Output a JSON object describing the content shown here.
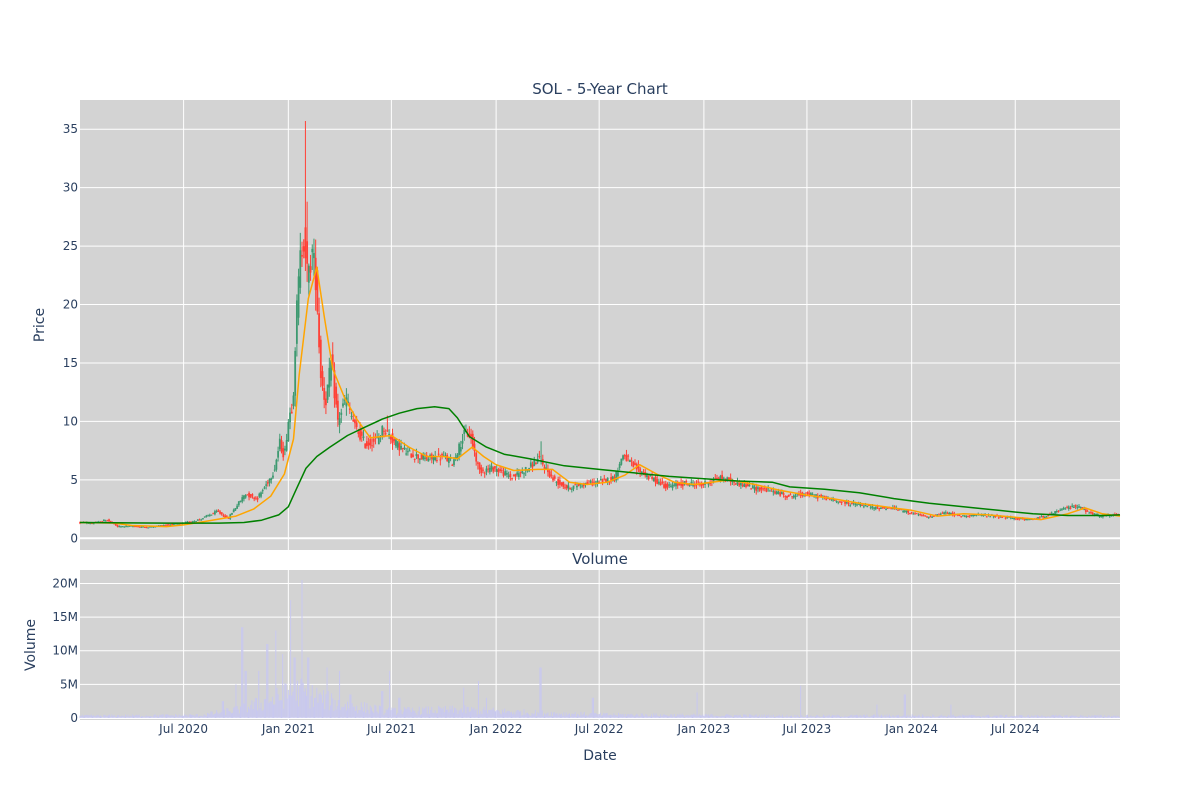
{
  "chart_data": [
    {
      "type": "candlestick",
      "title": "SOL - 5-Year Chart",
      "xlabel": "",
      "ylabel": "Price",
      "ylim": [
        -1,
        37.5
      ],
      "yticks": [
        0,
        5,
        10,
        15,
        20,
        25,
        30,
        35
      ],
      "xlim": [
        "2020-01-01",
        "2025-01-01"
      ],
      "xticks": [
        {
          "date": "2020-07-01",
          "label": "Jul 2020"
        },
        {
          "date": "2021-01-01",
          "label": "Jan 2021"
        },
        {
          "date": "2021-07-01",
          "label": "Jul 2021"
        },
        {
          "date": "2022-01-01",
          "label": "Jan 2022"
        },
        {
          "date": "2022-07-01",
          "label": "Jul 2022"
        },
        {
          "date": "2023-01-01",
          "label": "Jan 2023"
        },
        {
          "date": "2023-07-01",
          "label": "Jul 2023"
        },
        {
          "date": "2024-01-01",
          "label": "Jan 2024"
        },
        {
          "date": "2024-07-01",
          "label": "Jul 2024"
        }
      ],
      "grid": true,
      "plot_bg": "#d3d3d3",
      "increasing_color": "#3d9970",
      "decreasing_color": "#ff4136",
      "price_path": [
        [
          "2020-01-01",
          1.35
        ],
        [
          "2020-02-01",
          1.3
        ],
        [
          "2020-02-20",
          1.6
        ],
        [
          "2020-03-10",
          1.0
        ],
        [
          "2020-04-01",
          1.05
        ],
        [
          "2020-05-01",
          0.95
        ],
        [
          "2020-06-01",
          1.15
        ],
        [
          "2020-07-01",
          1.25
        ],
        [
          "2020-08-01",
          1.6
        ],
        [
          "2020-09-01",
          2.3
        ],
        [
          "2020-09-20",
          1.7
        ],
        [
          "2020-10-01",
          2.5
        ],
        [
          "2020-10-20",
          3.8
        ],
        [
          "2020-11-10",
          3.4
        ],
        [
          "2020-11-25",
          4.5
        ],
        [
          "2020-12-10",
          5.8
        ],
        [
          "2020-12-20",
          8.2
        ],
        [
          "2020-12-28",
          7.0
        ],
        [
          "2021-01-05",
          10.5
        ],
        [
          "2021-01-12",
          11.5
        ],
        [
          "2021-01-18",
          19.0
        ],
        [
          "2021-01-25",
          24.0
        ],
        [
          "2021-02-01",
          26.0
        ],
        [
          "2021-02-07",
          22.0
        ],
        [
          "2021-02-15",
          24.5
        ],
        [
          "2021-02-22",
          22.0
        ],
        [
          "2021-03-01",
          14.5
        ],
        [
          "2021-03-10",
          11.5
        ],
        [
          "2021-03-20",
          15.0
        ],
        [
          "2021-04-01",
          10.0
        ],
        [
          "2021-04-15",
          12.0
        ],
        [
          "2021-05-01",
          9.5
        ],
        [
          "2021-05-20",
          8.0
        ],
        [
          "2021-06-10",
          8.5
        ],
        [
          "2021-06-20",
          9.5
        ],
        [
          "2021-07-10",
          8.2
        ],
        [
          "2021-08-01",
          7.3
        ],
        [
          "2021-09-01",
          6.8
        ],
        [
          "2021-10-01",
          7.0
        ],
        [
          "2021-10-20",
          6.5
        ],
        [
          "2021-11-10",
          9.0
        ],
        [
          "2021-11-20",
          8.8
        ],
        [
          "2021-12-05",
          5.8
        ],
        [
          "2022-01-01",
          6.0
        ],
        [
          "2022-02-01",
          5.2
        ],
        [
          "2022-03-01",
          6.0
        ],
        [
          "2022-03-20",
          6.8
        ],
        [
          "2022-04-15",
          5.0
        ],
        [
          "2022-05-10",
          4.3
        ],
        [
          "2022-06-01",
          4.6
        ],
        [
          "2022-07-01",
          4.8
        ],
        [
          "2022-08-01",
          5.2
        ],
        [
          "2022-08-15",
          7.2
        ],
        [
          "2022-09-01",
          6.2
        ],
        [
          "2022-10-01",
          5.2
        ],
        [
          "2022-11-01",
          4.4
        ],
        [
          "2022-12-01",
          4.7
        ],
        [
          "2023-01-01",
          4.6
        ],
        [
          "2023-02-01",
          5.2
        ],
        [
          "2023-03-01",
          4.8
        ],
        [
          "2023-04-01",
          4.3
        ],
        [
          "2023-05-01",
          4.1
        ],
        [
          "2023-06-01",
          3.6
        ],
        [
          "2023-07-01",
          3.8
        ],
        [
          "2023-08-01",
          3.5
        ],
        [
          "2023-09-01",
          3.1
        ],
        [
          "2023-10-01",
          2.9
        ],
        [
          "2023-11-01",
          2.6
        ],
        [
          "2023-12-01",
          2.6
        ],
        [
          "2024-01-01",
          2.2
        ],
        [
          "2024-02-01",
          1.8
        ],
        [
          "2024-03-01",
          2.2
        ],
        [
          "2024-04-01",
          1.9
        ],
        [
          "2024-05-01",
          2.0
        ],
        [
          "2024-06-01",
          1.9
        ],
        [
          "2024-07-01",
          1.7
        ],
        [
          "2024-08-01",
          1.6
        ],
        [
          "2024-09-01",
          2.0
        ],
        [
          "2024-10-01",
          2.6
        ],
        [
          "2024-10-20",
          2.8
        ],
        [
          "2024-11-10",
          2.2
        ],
        [
          "2024-12-01",
          1.9
        ],
        [
          "2025-01-01",
          2.0
        ]
      ],
      "spikes": [
        {
          "date": "2021-01-31",
          "high": 35.7
        },
        {
          "date": "2021-02-04",
          "high": 28.8
        },
        {
          "date": "2021-06-25",
          "high": 10.5
        },
        {
          "date": "2022-03-22",
          "high": 8.3
        }
      ],
      "series": [
        {
          "color": "#ffa500",
          "points": [
            [
              "2020-01-01",
              1.35
            ],
            [
              "2020-03-01",
              1.3
            ],
            [
              "2020-04-01",
              1.1
            ],
            [
              "2020-06-01",
              1.0
            ],
            [
              "2020-07-01",
              1.15
            ],
            [
              "2020-08-15",
              1.5
            ],
            [
              "2020-10-01",
              1.9
            ],
            [
              "2020-11-01",
              2.5
            ],
            [
              "2020-12-01",
              3.6
            ],
            [
              "2020-12-25",
              5.5
            ],
            [
              "2021-01-10",
              8.5
            ],
            [
              "2021-01-20",
              14.0
            ],
            [
              "2021-02-05",
              20.5
            ],
            [
              "2021-02-20",
              23.2
            ],
            [
              "2021-03-05",
              19.0
            ],
            [
              "2021-03-20",
              14.5
            ],
            [
              "2021-04-10",
              12.0
            ],
            [
              "2021-05-01",
              10.2
            ],
            [
              "2021-05-25",
              8.6
            ],
            [
              "2021-07-01",
              8.8
            ],
            [
              "2021-08-01",
              7.8
            ],
            [
              "2021-09-01",
              7.0
            ],
            [
              "2021-10-01",
              7.0
            ],
            [
              "2021-10-25",
              6.8
            ],
            [
              "2021-11-20",
              7.8
            ],
            [
              "2021-12-10",
              7.0
            ],
            [
              "2022-01-01",
              6.3
            ],
            [
              "2022-02-01",
              5.8
            ],
            [
              "2022-03-15",
              5.9
            ],
            [
              "2022-04-10",
              5.9
            ],
            [
              "2022-05-10",
              4.8
            ],
            [
              "2022-06-10",
              4.6
            ],
            [
              "2022-07-15",
              4.8
            ],
            [
              "2022-08-15",
              5.4
            ],
            [
              "2022-09-10",
              6.3
            ],
            [
              "2022-10-10",
              5.5
            ],
            [
              "2022-11-10",
              4.8
            ],
            [
              "2022-12-15",
              4.6
            ],
            [
              "2023-01-15",
              4.8
            ],
            [
              "2023-02-15",
              5.0
            ],
            [
              "2023-04-01",
              4.6
            ],
            [
              "2023-05-15",
              4.1
            ],
            [
              "2023-07-01",
              3.7
            ],
            [
              "2023-08-15",
              3.4
            ],
            [
              "2023-10-01",
              3.0
            ],
            [
              "2023-11-15",
              2.7
            ],
            [
              "2024-01-01",
              2.4
            ],
            [
              "2024-02-15",
              1.9
            ],
            [
              "2024-04-01",
              2.1
            ],
            [
              "2024-05-15",
              2.0
            ],
            [
              "2024-07-01",
              1.8
            ],
            [
              "2024-08-15",
              1.6
            ],
            [
              "2024-10-01",
              2.1
            ],
            [
              "2024-11-01",
              2.6
            ],
            [
              "2024-12-01",
              2.1
            ],
            [
              "2025-01-01",
              1.9
            ]
          ]
        },
        {
          "color": "#008000",
          "points": [
            [
              "2020-01-01",
              1.35
            ],
            [
              "2020-06-01",
              1.3
            ],
            [
              "2020-09-01",
              1.3
            ],
            [
              "2020-10-15",
              1.35
            ],
            [
              "2020-11-15",
              1.55
            ],
            [
              "2020-12-15",
              2.0
            ],
            [
              "2021-01-01",
              2.7
            ],
            [
              "2021-01-15",
              4.2
            ],
            [
              "2021-02-01",
              6.0
            ],
            [
              "2021-02-20",
              7.0
            ],
            [
              "2021-03-15",
              7.8
            ],
            [
              "2021-04-15",
              8.8
            ],
            [
              "2021-05-15",
              9.5
            ],
            [
              "2021-06-15",
              10.2
            ],
            [
              "2021-07-15",
              10.7
            ],
            [
              "2021-08-15",
              11.1
            ],
            [
              "2021-09-15",
              11.25
            ],
            [
              "2021-10-10",
              11.1
            ],
            [
              "2021-10-25",
              10.3
            ],
            [
              "2021-11-15",
              8.7
            ],
            [
              "2021-12-15",
              7.8
            ],
            [
              "2022-01-15",
              7.2
            ],
            [
              "2022-03-01",
              6.8
            ],
            [
              "2022-05-01",
              6.2
            ],
            [
              "2022-07-01",
              5.9
            ],
            [
              "2022-09-01",
              5.6
            ],
            [
              "2022-11-01",
              5.3
            ],
            [
              "2023-01-01",
              5.1
            ],
            [
              "2023-03-01",
              4.9
            ],
            [
              "2023-05-01",
              4.8
            ],
            [
              "2023-06-01",
              4.4
            ],
            [
              "2023-08-01",
              4.2
            ],
            [
              "2023-10-01",
              3.9
            ],
            [
              "2023-12-01",
              3.4
            ],
            [
              "2024-02-01",
              3.0
            ],
            [
              "2024-04-01",
              2.7
            ],
            [
              "2024-06-01",
              2.4
            ],
            [
              "2024-08-01",
              2.1
            ],
            [
              "2024-10-01",
              1.95
            ],
            [
              "2024-12-01",
              1.95
            ],
            [
              "2025-01-01",
              2.0
            ]
          ]
        }
      ]
    },
    {
      "type": "bar",
      "title": "Volume",
      "xlabel": "Date",
      "ylabel": "Volume",
      "ylim": [
        -0.3,
        22
      ],
      "yticks": [
        0,
        5,
        10,
        15,
        20
      ],
      "ytick_labels": [
        "0",
        "5M",
        "10M",
        "15M",
        "20M"
      ],
      "unit": "M",
      "grid": true,
      "plot_bg": "#d3d3d3",
      "bar_color": "#c8c8f0",
      "baseline": [
        [
          "2020-01-01",
          0.3
        ],
        [
          "2020-08-01",
          0.4
        ],
        [
          "2020-10-01",
          1.2
        ],
        [
          "2020-12-01",
          2.5
        ],
        [
          "2021-01-15",
          4.0
        ],
        [
          "2021-04-01",
          2.0
        ],
        [
          "2021-07-01",
          1.0
        ],
        [
          "2021-11-01",
          1.2
        ],
        [
          "2022-03-01",
          0.8
        ],
        [
          "2022-07-01",
          0.5
        ],
        [
          "2023-01-01",
          0.4
        ],
        [
          "2023-07-01",
          0.3
        ],
        [
          "2024-01-01",
          0.35
        ],
        [
          "2024-07-01",
          0.3
        ],
        [
          "2025-01-01",
          0.3
        ]
      ],
      "spikes": [
        {
          "date": "2020-09-08",
          "value": 2.5
        },
        {
          "date": "2020-10-01",
          "value": 5.0
        },
        {
          "date": "2020-10-12",
          "value": 13.5
        },
        {
          "date": "2020-10-18",
          "value": 7.0
        },
        {
          "date": "2020-11-10",
          "value": 7.0
        },
        {
          "date": "2020-11-25",
          "value": 11.0
        },
        {
          "date": "2020-12-10",
          "value": 13.0
        },
        {
          "date": "2020-12-22",
          "value": 9.5
        },
        {
          "date": "2021-01-05",
          "value": 17.5
        },
        {
          "date": "2021-01-12",
          "value": 9.0
        },
        {
          "date": "2021-01-25",
          "value": 20.5
        },
        {
          "date": "2021-02-05",
          "value": 9.0
        },
        {
          "date": "2021-02-20",
          "value": 4.5
        },
        {
          "date": "2021-03-10",
          "value": 7.5
        },
        {
          "date": "2021-04-01",
          "value": 7.0
        },
        {
          "date": "2021-04-20",
          "value": 3.5
        },
        {
          "date": "2021-06-15",
          "value": 4.0
        },
        {
          "date": "2021-06-28",
          "value": 7.0
        },
        {
          "date": "2021-07-15",
          "value": 3.0
        },
        {
          "date": "2021-11-05",
          "value": 4.5
        },
        {
          "date": "2021-12-01",
          "value": 5.5
        },
        {
          "date": "2021-12-15",
          "value": 3.0
        },
        {
          "date": "2022-03-20",
          "value": 7.5
        },
        {
          "date": "2022-06-20",
          "value": 3.0
        },
        {
          "date": "2022-12-20",
          "value": 3.8
        },
        {
          "date": "2023-06-20",
          "value": 4.8
        },
        {
          "date": "2023-11-01",
          "value": 2.0
        },
        {
          "date": "2023-12-20",
          "value": 3.5
        },
        {
          "date": "2024-03-10",
          "value": 2.0
        }
      ]
    }
  ]
}
